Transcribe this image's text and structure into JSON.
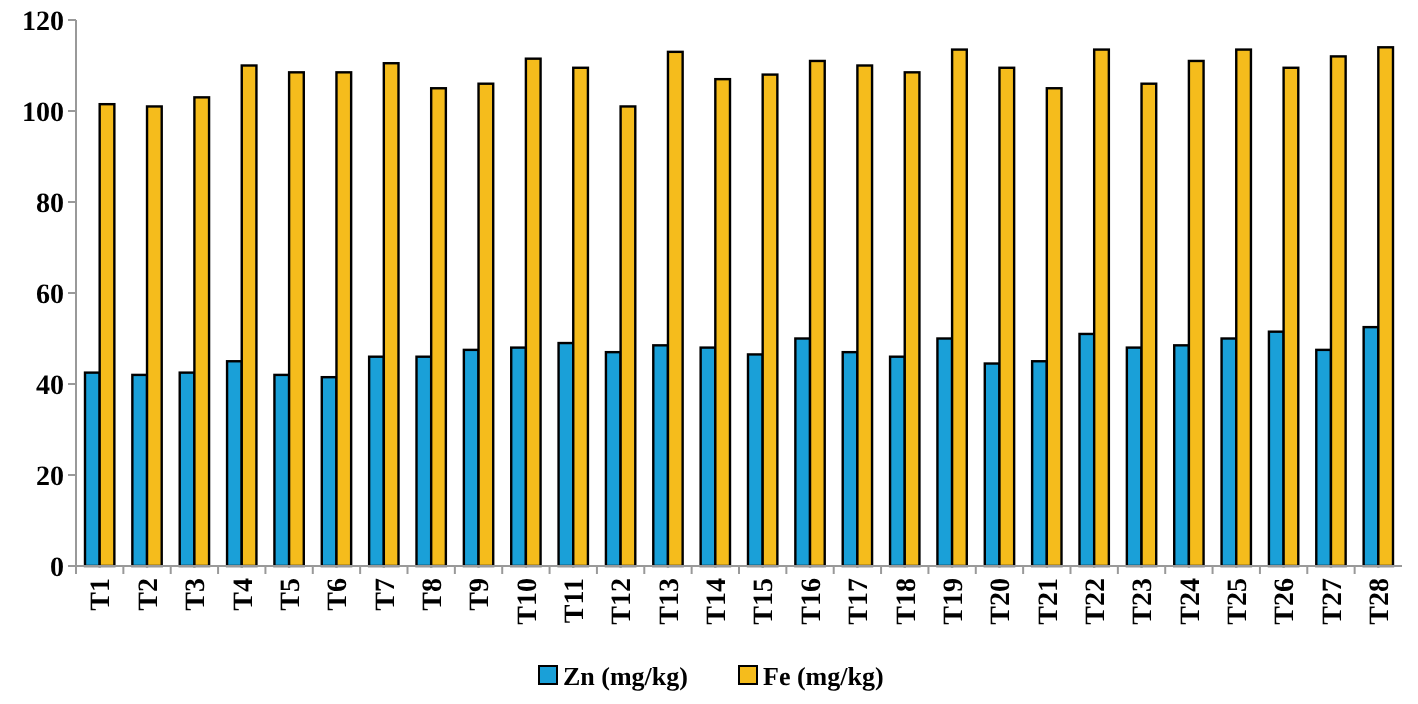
{
  "chart_data": {
    "type": "bar",
    "categories": [
      "T1",
      "T2",
      "T3",
      "T4",
      "T5",
      "T6",
      "T7",
      "T8",
      "T9",
      "T10",
      "T11",
      "T12",
      "T13",
      "T14",
      "T15",
      "T16",
      "T17",
      "T18",
      "T19",
      "T20",
      "T21",
      "T22",
      "T23",
      "T24",
      "T25",
      "T26",
      "T27",
      "T28"
    ],
    "series": [
      {
        "name": "Zn (mg/kg)",
        "color": "#1aa0d8",
        "values": [
          42.5,
          42,
          42.5,
          45,
          42,
          41.5,
          46,
          46,
          47.5,
          48,
          49,
          47,
          48.5,
          48,
          46.5,
          50,
          47,
          46,
          50,
          44.5,
          45,
          51,
          48,
          48.5,
          50,
          51.5,
          47.5,
          52.5
        ]
      },
      {
        "name": "Fe (mg/kg)",
        "color": "#f5bc1c",
        "values": [
          101.5,
          101,
          103,
          110,
          108.5,
          108.5,
          110.5,
          105,
          106,
          111.5,
          109.5,
          101,
          113,
          107,
          108,
          111,
          110,
          108.5,
          113.5,
          109.5,
          105,
          113.5,
          106,
          111,
          113.5,
          109.5,
          112,
          114
        ]
      }
    ],
    "ylim": [
      0,
      120
    ],
    "yticks": [
      0,
      20,
      40,
      60,
      80,
      100,
      120
    ],
    "grid": false,
    "legend": "bottom"
  }
}
